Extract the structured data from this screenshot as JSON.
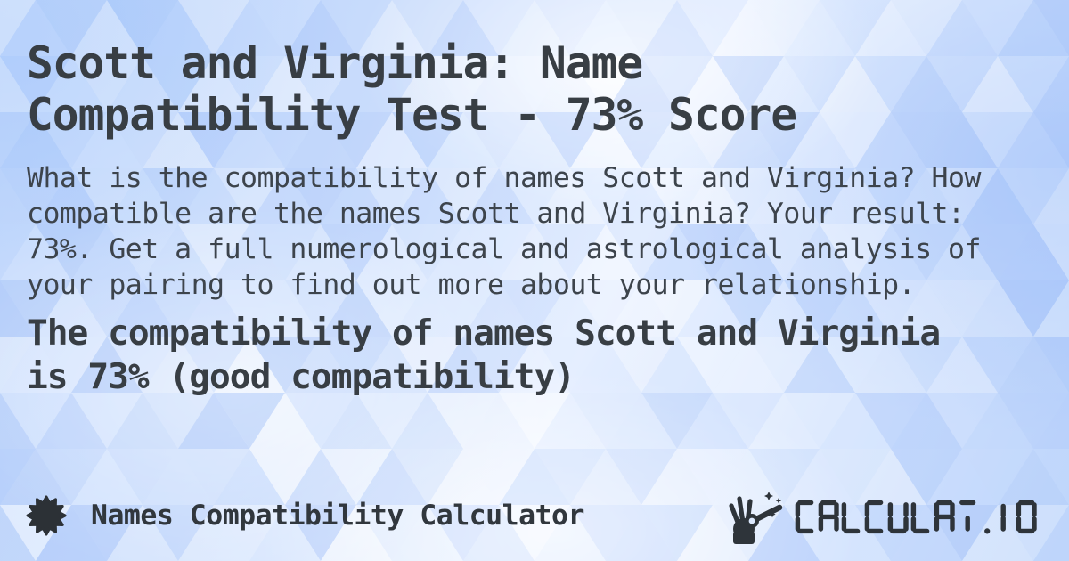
{
  "card": {
    "title_lines": [
      "Scott and Virginia: Name",
      "Compatibility Test - 73% Score"
    ],
    "description_lines": [
      "What is the compatibility of names Scott and Virginia? How",
      "compatible are the names Scott and Virginia? Your result:",
      "73%. Get a full numerological and astrological analysis of",
      "your pairing to find out more about your relationship."
    ],
    "result_lines": [
      "The compatibility of names Scott and Virginia",
      "is 73% (good compatibility)"
    ],
    "names": "Scott and Virginia",
    "score": "73%",
    "verdict": "good compatibility"
  },
  "footer": {
    "calculator_label": "Names Compatibility Calculator",
    "logo_text": "CALCULAT.IO",
    "badge_icon": "starburst-badge",
    "logo_icon": "hand-with-magic-wand"
  },
  "colors": {
    "heading_text": "#383e44",
    "body_text": "#3d444c",
    "footer_text": "#31373d",
    "logo_text": "#2e343a",
    "background_base": "#cbdefc",
    "pattern_palette": [
      "#ffffff",
      "#f1f6ff",
      "#e0ecff",
      "#cfe0fd",
      "#bdd4fc",
      "#abc7fa",
      "#9fbef9"
    ]
  }
}
